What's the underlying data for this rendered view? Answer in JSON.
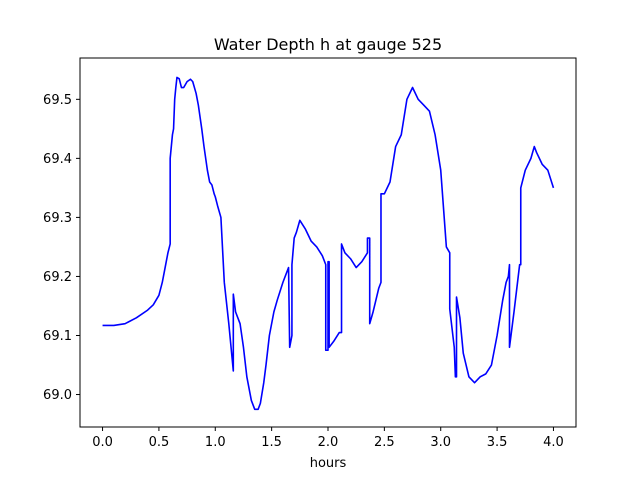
{
  "chart_data": {
    "type": "line",
    "title": "Water Depth h at gauge 525",
    "xlabel": "hours",
    "ylabel": "",
    "xlim": [
      -0.2,
      4.2
    ],
    "ylim": [
      68.945,
      69.57
    ],
    "xticks": [
      0.0,
      0.5,
      1.0,
      1.5,
      2.0,
      2.5,
      3.0,
      3.5,
      4.0
    ],
    "xtick_labels": [
      "0.0",
      "0.5",
      "1.0",
      "1.5",
      "2.0",
      "2.5",
      "3.0",
      "3.5",
      "4.0"
    ],
    "yticks": [
      69.0,
      69.1,
      69.2,
      69.3,
      69.4,
      69.5
    ],
    "ytick_labels": [
      "69.0",
      "69.1",
      "69.2",
      "69.3",
      "69.4",
      "69.5"
    ],
    "grid": false,
    "line_color": "#0000ff",
    "series": [
      {
        "x": [
          0.0,
          0.1,
          0.2,
          0.3,
          0.4,
          0.45,
          0.5,
          0.53,
          0.55,
          0.58,
          0.6,
          0.6,
          0.62,
          0.63,
          0.64,
          0.65,
          0.66,
          0.68,
          0.7,
          0.72,
          0.75,
          0.78,
          0.8,
          0.83,
          0.85,
          0.88,
          0.9,
          0.93,
          0.95,
          0.97,
          0.99,
          1.0,
          1.02,
          1.05,
          1.08,
          1.08,
          1.12,
          1.15,
          1.16,
          1.16,
          1.18,
          1.2,
          1.22,
          1.25,
          1.28,
          1.32,
          1.35,
          1.38,
          1.4,
          1.43,
          1.45,
          1.48,
          1.52,
          1.55,
          1.6,
          1.65,
          1.66,
          1.66,
          1.68,
          1.68,
          1.7,
          1.72,
          1.75,
          1.8,
          1.85,
          1.9,
          1.95,
          1.98,
          1.98,
          2.0,
          2.0,
          2.01,
          2.01,
          2.05,
          2.1,
          2.12,
          2.12,
          2.15,
          2.2,
          2.25,
          2.3,
          2.35,
          2.35,
          2.37,
          2.37,
          2.4,
          2.45,
          2.47,
          2.47,
          2.5,
          2.55,
          2.6,
          2.65,
          2.7,
          2.75,
          2.8,
          2.85,
          2.9,
          2.95,
          3.0,
          3.05,
          3.08,
          3.08,
          3.12,
          3.13,
          3.14,
          3.14,
          3.17,
          3.2,
          3.25,
          3.3,
          3.35,
          3.4,
          3.45,
          3.5,
          3.55,
          3.58,
          3.6,
          3.61,
          3.61,
          3.65,
          3.7,
          3.71,
          3.71,
          3.75,
          3.8,
          3.83,
          3.85,
          3.9,
          3.95,
          4.0
        ],
        "y": [
          69.117,
          69.117,
          69.12,
          69.13,
          69.143,
          69.152,
          69.168,
          69.19,
          69.21,
          69.24,
          69.255,
          69.4,
          69.44,
          69.45,
          69.5,
          69.52,
          69.537,
          69.535,
          69.52,
          69.52,
          69.53,
          69.534,
          69.53,
          69.51,
          69.49,
          69.45,
          69.42,
          69.38,
          69.36,
          69.355,
          69.34,
          69.335,
          69.32,
          69.3,
          69.19,
          69.19,
          69.12,
          69.06,
          69.04,
          69.17,
          69.14,
          69.13,
          69.12,
          69.08,
          69.03,
          68.99,
          68.975,
          68.975,
          68.985,
          69.02,
          69.05,
          69.1,
          69.14,
          69.16,
          69.19,
          69.215,
          69.08,
          69.08,
          69.1,
          69.22,
          69.265,
          69.275,
          69.295,
          69.28,
          69.26,
          69.25,
          69.235,
          69.22,
          69.075,
          69.075,
          69.225,
          69.225,
          69.08,
          69.09,
          69.105,
          69.105,
          69.255,
          69.24,
          69.23,
          69.215,
          69.225,
          69.24,
          69.265,
          69.265,
          69.12,
          69.14,
          69.18,
          69.19,
          69.34,
          69.34,
          69.36,
          69.42,
          69.44,
          69.5,
          69.52,
          69.5,
          69.49,
          69.48,
          69.44,
          69.38,
          69.25,
          69.24,
          69.145,
          69.08,
          69.03,
          69.03,
          69.165,
          69.13,
          69.07,
          69.03,
          69.02,
          69.03,
          69.035,
          69.05,
          69.1,
          69.16,
          69.19,
          69.2,
          69.22,
          69.08,
          69.14,
          69.22,
          69.22,
          69.35,
          69.38,
          69.4,
          69.42,
          69.41,
          69.39,
          69.38,
          69.35
        ]
      }
    ]
  }
}
